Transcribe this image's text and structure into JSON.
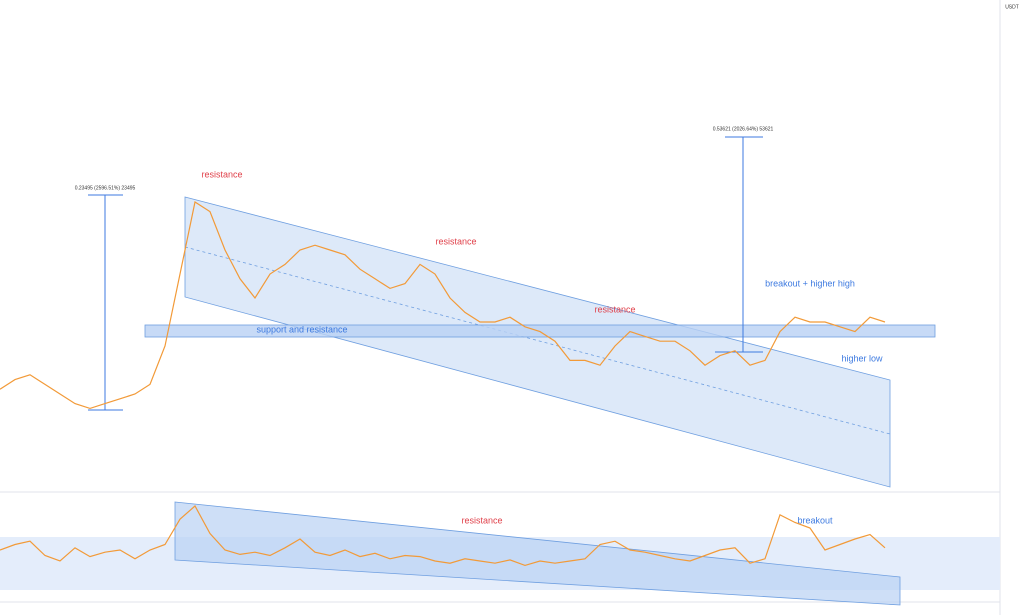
{
  "chart_data": [
    {
      "type": "line",
      "color": "#f29a38",
      "currency": "USDT",
      "categories": [
        null,
        null,
        null,
        null,
        null,
        null,
        null,
        null,
        null,
        null,
        null,
        null,
        null,
        null,
        null,
        null,
        null,
        null,
        null,
        null,
        null,
        null,
        null,
        null,
        null,
        null,
        null,
        null,
        null,
        null,
        null,
        null,
        null,
        null,
        null,
        null,
        null,
        null,
        null,
        null,
        null,
        null,
        null,
        null,
        null,
        null,
        null,
        null,
        null,
        null,
        null,
        null,
        null,
        null,
        null,
        null,
        null,
        null,
        null,
        null
      ],
      "values": [
        21,
        23,
        24,
        22,
        20,
        18,
        17,
        18,
        19,
        20,
        22,
        30,
        45,
        60,
        58,
        50,
        44,
        40,
        45,
        47,
        50,
        51,
        50,
        49,
        46,
        44,
        42,
        43,
        47,
        45,
        40,
        37,
        35,
        35,
        36,
        34,
        33,
        31,
        27,
        27,
        26,
        30,
        33,
        32,
        31,
        31,
        29,
        26,
        28,
        29,
        26,
        27,
        33,
        36,
        35,
        35,
        34,
        33,
        36,
        35
      ],
      "ylim": [
        0,
        100
      ],
      "annotations": [
        "resistance",
        "resistance",
        "resistance",
        "support and resistance",
        "breakout + higher high",
        "higher low",
        "0.23495 (2596.51%) 23495",
        "0.53621 (2026.64%) 53621"
      ]
    },
    {
      "type": "line",
      "color": "#f29a38",
      "categories": [
        null,
        null,
        null,
        null,
        null,
        null,
        null,
        null,
        null,
        null,
        null,
        null,
        null,
        null,
        null,
        null,
        null,
        null,
        null,
        null,
        null,
        null,
        null,
        null,
        null,
        null,
        null,
        null,
        null,
        null,
        null,
        null,
        null,
        null,
        null,
        null,
        null,
        null,
        null,
        null,
        null,
        null,
        null,
        null,
        null,
        null,
        null,
        null,
        null,
        null,
        null,
        null,
        null,
        null,
        null,
        null,
        null,
        null,
        null,
        null
      ],
      "values": [
        50,
        55,
        58,
        45,
        40,
        52,
        44,
        48,
        50,
        42,
        50,
        55,
        78,
        90,
        65,
        50,
        46,
        48,
        45,
        52,
        60,
        48,
        45,
        50,
        44,
        47,
        42,
        45,
        44,
        40,
        38,
        42,
        40,
        38,
        41,
        36,
        40,
        38,
        40,
        42,
        55,
        58,
        50,
        48,
        45,
        42,
        40,
        45,
        50,
        52,
        38,
        42,
        82,
        75,
        70,
        50,
        55,
        60,
        64,
        52
      ],
      "ylim": [
        0,
        100
      ],
      "annotations": [
        "resistance",
        "breakout"
      ]
    }
  ]
}
